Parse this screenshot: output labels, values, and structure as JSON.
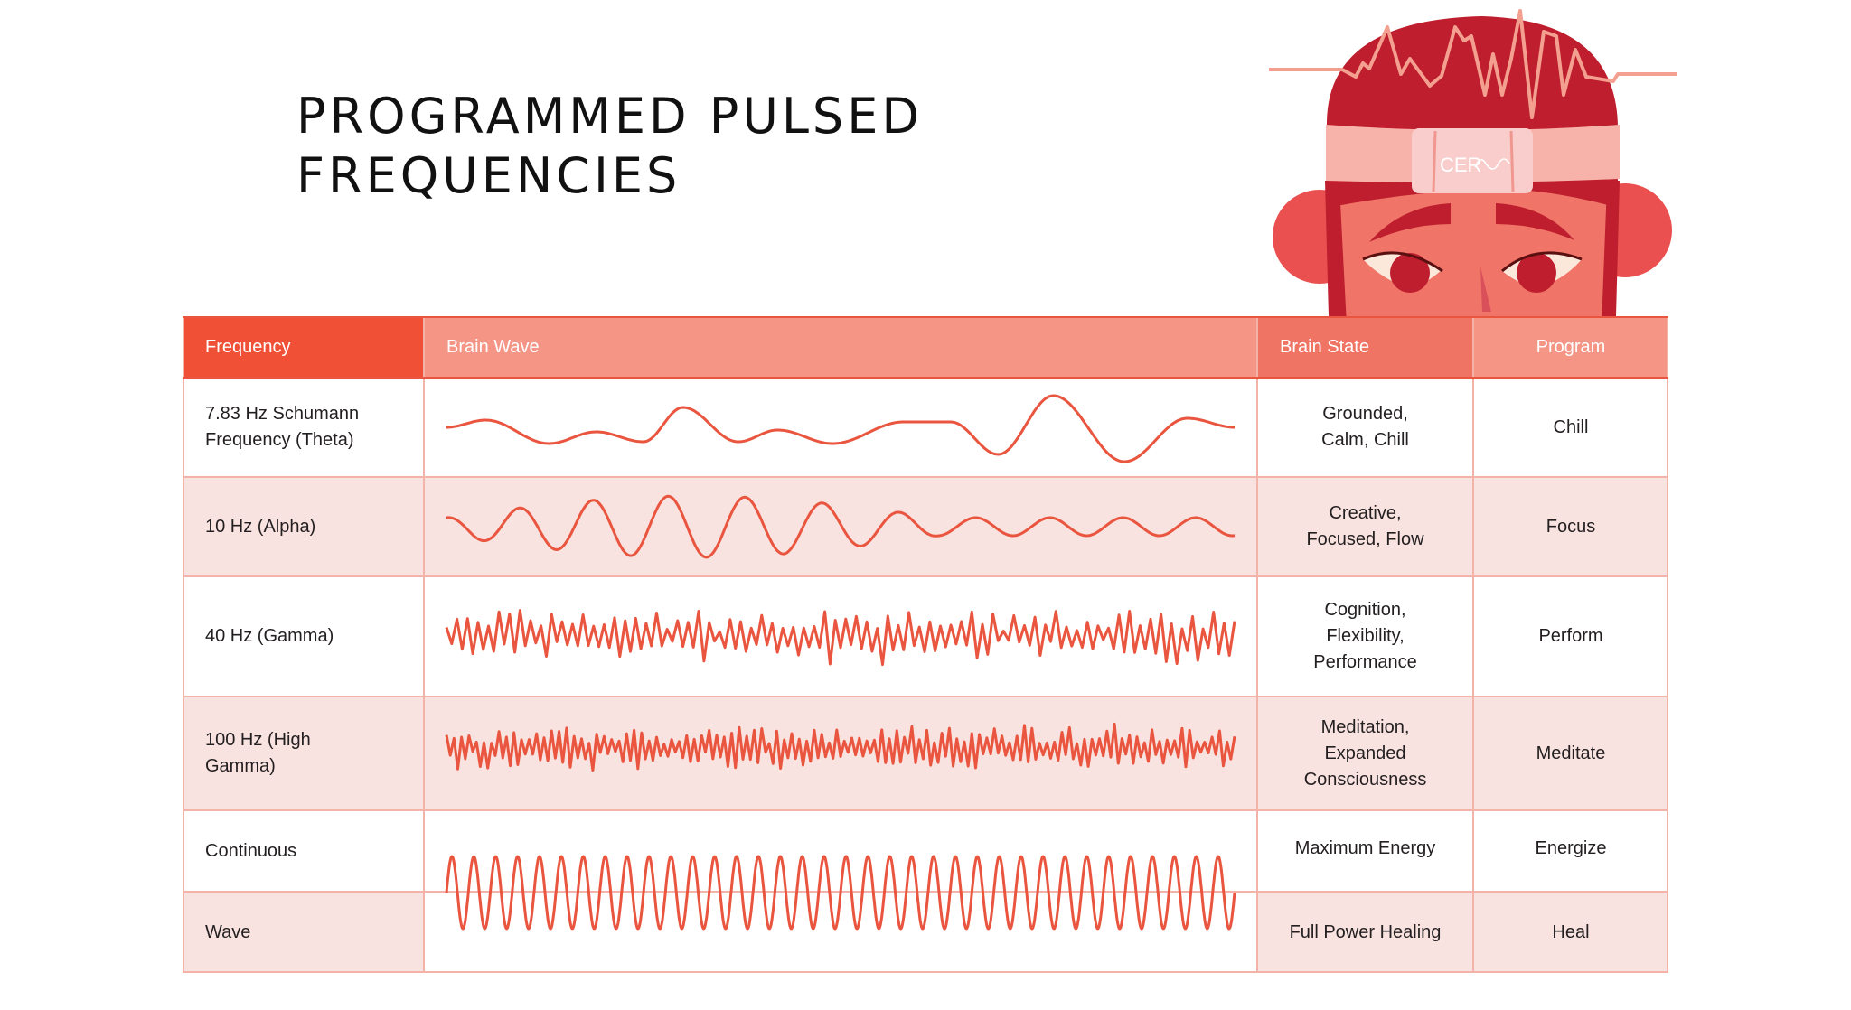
{
  "title": {
    "line1": "PROGRAMMED PULSED",
    "line2": "FREQUENCIES"
  },
  "illustration": {
    "logo_text": "CERA",
    "logo_visible": "CER"
  },
  "colors": {
    "header_frequency": "#F05136",
    "header_brainwave": "#F49585",
    "header_brainstate": "#F07464",
    "header_program": "#F49585",
    "row_alt": "#F9E3E0",
    "border": "#F4B3A8",
    "wave": "#E9553E",
    "hat": "#BE1E2D",
    "face": "#F07468"
  },
  "table": {
    "headers": {
      "frequency": "Frequency",
      "brain_wave": "Brain Wave",
      "brain_state": "Brain State",
      "program": "Program"
    },
    "rows": [
      {
        "frequency": "7.83 Hz Schumann Frequency (Theta)",
        "brain_state": "Grounded, Calm, Chill",
        "program": "Chill",
        "wave": "slow-irregular"
      },
      {
        "frequency": "10 Hz (Alpha)",
        "brain_state": "Creative, Focused, Flow",
        "program": "Focus",
        "wave": "alpha"
      },
      {
        "frequency": "40 Hz (Gamma)",
        "brain_state": "Cognition, Flexibility, Performance",
        "program": "Perform",
        "wave": "gamma"
      },
      {
        "frequency": "100 Hz (High Gamma)",
        "brain_state": "Meditation, Expanded Consciousness",
        "program": "Meditate",
        "wave": "high-gamma"
      },
      {
        "frequency": "Continuous",
        "brain_state": "Maximum Energy",
        "program": "Energize",
        "wave": "continuous"
      },
      {
        "frequency": "Wave",
        "brain_state": "Full Power Healing",
        "program": "Heal",
        "wave": "continuous"
      }
    ]
  }
}
